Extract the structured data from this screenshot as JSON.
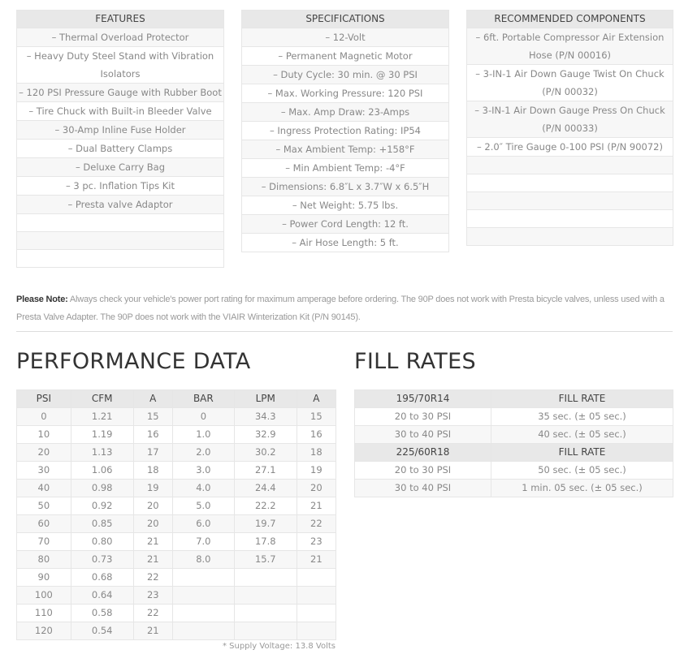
{
  "features": {
    "header": "FEATURES",
    "items": [
      "– Thermal Overload Protector",
      "– Heavy Duty Steel Stand with Vibration Isolators",
      "– 120 PSI Pressure Gauge with Rubber Boot",
      "– Tire Chuck with Built-in Bleeder Valve",
      "– 30-Amp Inline Fuse Holder",
      "– Dual Battery Clamps",
      "– Deluxe Carry Bag",
      "– 3 pc. Inflation Tips Kit",
      "– Presta valve Adaptor",
      "",
      "",
      ""
    ]
  },
  "specifications": {
    "header": "SPECIFICATIONS",
    "items": [
      "– 12-Volt",
      "– Permanent Magnetic Motor",
      "– Duty Cycle: 30 min. @ 30 PSI",
      "– Max. Working Pressure: 120 PSI",
      "– Max. Amp Draw: 23-Amps",
      "– Ingress Protection Rating: IP54",
      "– Max Ambient Temp: +158°F",
      "– Min Ambient Temp: -4°F",
      "– Dimensions: 6.8″L x 3.7″W x 6.5″H",
      "– Net Weight: 5.75 lbs.",
      "– Power Cord Length: 12 ft.",
      "– Air Hose Length: 5 ft."
    ]
  },
  "recommended": {
    "header": "RECOMMENDED COMPONENTS",
    "items": [
      "– 6ft. Portable Compressor Air Extension Hose (P/N 00016)",
      "– 3-IN-1 Air Down Gauge Twist On Chuck (P/N 00032)",
      "– 3-IN-1 Air Down Gauge Press On Chuck (P/N 00033)",
      "– 2.0″ Tire Gauge 0-100 PSI (P/N 90072)",
      "",
      "",
      "",
      "",
      ""
    ]
  },
  "note": {
    "label": "Please Note:",
    "text": " Always check your vehicle's power port rating for maximum amperage before ordering. The 90P does not work with Presta bicycle valves, unless used with a Presta Valve Adapter. The 90P does not work with the VIAIR Winterization Kit (P/N 90145)."
  },
  "performance": {
    "title": "PERFORMANCE DATA",
    "headers": [
      "PSI",
      "CFM",
      "A",
      "BAR",
      "LPM",
      "A"
    ],
    "rows": [
      [
        "0",
        "1.21",
        "15",
        "0",
        "34.3",
        "15"
      ],
      [
        "10",
        "1.19",
        "16",
        "1.0",
        "32.9",
        "16"
      ],
      [
        "20",
        "1.13",
        "17",
        "2.0",
        "30.2",
        "18"
      ],
      [
        "30",
        "1.06",
        "18",
        "3.0",
        "27.1",
        "19"
      ],
      [
        "40",
        "0.98",
        "19",
        "4.0",
        "24.4",
        "20"
      ],
      [
        "50",
        "0.92",
        "20",
        "5.0",
        "22.2",
        "21"
      ],
      [
        "60",
        "0.85",
        "20",
        "6.0",
        "19.7",
        "22"
      ],
      [
        "70",
        "0.80",
        "21",
        "7.0",
        "17.8",
        "23"
      ],
      [
        "80",
        "0.73",
        "21",
        "8.0",
        "15.7",
        "21"
      ],
      [
        "90",
        "0.68",
        "22",
        "",
        "",
        ""
      ],
      [
        "100",
        "0.64",
        "23",
        "",
        "",
        ""
      ],
      [
        "110",
        "0.58",
        "22",
        "",
        "",
        ""
      ],
      [
        "120",
        "0.54",
        "21",
        "",
        "",
        ""
      ]
    ],
    "footnote": "* Supply Voltage: 13.8 Volts"
  },
  "fill_rates": {
    "title": "FILL RATES",
    "groups": [
      {
        "tire": "195/70R14",
        "header": "FILL RATE",
        "rows": [
          [
            "20 to 30 PSI",
            "35 sec. (± 05 sec.)"
          ],
          [
            "30 to 40 PSI",
            "40 sec. (± 05 sec.)"
          ]
        ]
      },
      {
        "tire": "225/60R18",
        "header": "FILL RATE",
        "rows": [
          [
            "20 to 30 PSI",
            "50 sec. (± 05 sec.)"
          ],
          [
            "30 to 40 PSI",
            "1 min. 05 sec. (± 05 sec.)"
          ]
        ]
      }
    ]
  }
}
